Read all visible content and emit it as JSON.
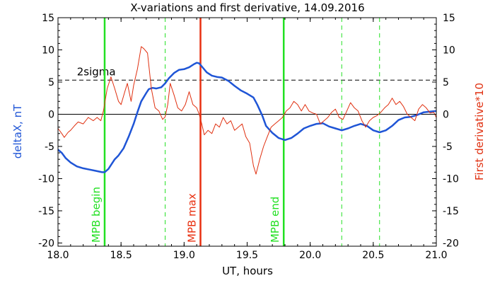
{
  "chart_data": {
    "type": "line",
    "title": "X-variations and first derivative, 14.09.2016",
    "xlabel": "UT, hours",
    "ylabel_left": "deltaX, nT",
    "ylabel_right": "First derivative*10",
    "xlim": [
      18.0,
      21.0
    ],
    "ylim": [
      -20.5,
      15
    ],
    "x_ticks": [
      "18.0",
      "18.5",
      "19.0",
      "19.5",
      "20.0",
      "20.5",
      "21.0"
    ],
    "y_ticks_left": [
      "15",
      "10",
      "5",
      "0",
      "-5",
      "-10",
      "-15",
      "-20"
    ],
    "y_ticks_right": [
      "15",
      "10",
      "5",
      "0",
      "-5",
      "-10",
      "-15",
      "-20"
    ],
    "colors": {
      "deltaX": "#1f55d6",
      "derivative": "#e03010",
      "mpb_boundary": "#22e022",
      "mpb_max": "#e83010",
      "dashed_green": "#22e022",
      "sigma_line": "#000000"
    },
    "sigma_level": 5.3,
    "sigma_label": "2sigma",
    "zero_line": 0,
    "vertical_markers": [
      {
        "x": 18.37,
        "label": "MPB begin",
        "color": "#22e022",
        "style": "solid"
      },
      {
        "x": 19.13,
        "label": "MPB max",
        "color": "#e83010",
        "style": "solid"
      },
      {
        "x": 19.79,
        "label": "MPB end",
        "color": "#22e022",
        "style": "solid"
      }
    ],
    "dashed_markers": [
      18.85,
      20.25,
      20.55
    ],
    "series": [
      {
        "name": "deltaX, nT",
        "axis": "left",
        "x": [
          18.0,
          18.03,
          18.06,
          18.1,
          18.15,
          18.2,
          18.25,
          18.3,
          18.35,
          18.37,
          18.4,
          18.45,
          18.48,
          18.52,
          18.56,
          18.6,
          18.63,
          18.66,
          18.7,
          18.72,
          18.75,
          18.78,
          18.82,
          18.85,
          18.88,
          18.92,
          18.96,
          19.0,
          19.04,
          19.08,
          19.1,
          19.12,
          19.15,
          19.18,
          19.22,
          19.26,
          19.3,
          19.35,
          19.4,
          19.45,
          19.5,
          19.55,
          19.58,
          19.62,
          19.65,
          19.7,
          19.75,
          19.8,
          19.85,
          19.9,
          19.95,
          20.0,
          20.05,
          20.1,
          20.15,
          20.2,
          20.25,
          20.3,
          20.35,
          20.4,
          20.45,
          20.5,
          20.55,
          20.6,
          20.65,
          20.7,
          20.75,
          20.8,
          20.85,
          20.9,
          20.95,
          21.0
        ],
        "y": [
          -5.5,
          -6.0,
          -6.8,
          -7.5,
          -8.1,
          -8.4,
          -8.6,
          -8.8,
          -9.0,
          -9.0,
          -8.5,
          -7.0,
          -6.4,
          -5.3,
          -3.5,
          -1.5,
          0.3,
          2.0,
          3.3,
          3.9,
          4.1,
          4.0,
          4.2,
          4.8,
          5.6,
          6.4,
          6.9,
          7.0,
          7.3,
          7.8,
          8.0,
          7.9,
          7.2,
          6.5,
          6.0,
          5.8,
          5.7,
          5.2,
          4.4,
          3.7,
          3.2,
          2.6,
          1.5,
          -0.2,
          -1.8,
          -2.9,
          -3.7,
          -4.0,
          -3.7,
          -3.0,
          -2.2,
          -1.8,
          -1.5,
          -1.4,
          -1.9,
          -2.2,
          -2.5,
          -2.2,
          -1.8,
          -1.5,
          -1.8,
          -2.5,
          -2.8,
          -2.5,
          -1.8,
          -0.9,
          -0.5,
          -0.4,
          -0.1,
          0.3,
          0.4,
          0.5
        ]
      },
      {
        "name": "First derivative*10",
        "axis": "right",
        "x": [
          18.0,
          18.03,
          18.05,
          18.08,
          18.1,
          18.13,
          18.16,
          18.2,
          18.24,
          18.28,
          18.31,
          18.34,
          18.36,
          18.39,
          18.42,
          18.45,
          18.48,
          18.5,
          18.53,
          18.55,
          18.58,
          18.6,
          18.63,
          18.66,
          18.68,
          18.71,
          18.74,
          18.77,
          18.8,
          18.83,
          18.85,
          18.87,
          18.89,
          18.92,
          18.95,
          18.98,
          19.01,
          19.04,
          19.07,
          19.1,
          19.12,
          19.14,
          19.16,
          19.19,
          19.22,
          19.25,
          19.28,
          19.31,
          19.34,
          19.37,
          19.4,
          19.43,
          19.46,
          19.49,
          19.52,
          19.55,
          19.57,
          19.6,
          19.63,
          19.66,
          19.69,
          19.72,
          19.75,
          19.78,
          19.81,
          19.84,
          19.87,
          19.9,
          19.93,
          19.96,
          19.99,
          20.02,
          20.05,
          20.08,
          20.11,
          20.14,
          20.17,
          20.2,
          20.23,
          20.26,
          20.29,
          20.32,
          20.35,
          20.38,
          20.41,
          20.44,
          20.47,
          20.5,
          20.53,
          20.56,
          20.59,
          20.62,
          20.65,
          20.68,
          20.71,
          20.74,
          20.77,
          20.8,
          20.83,
          20.86,
          20.89,
          20.92,
          20.95,
          20.98,
          21.0
        ],
        "y": [
          -2.2,
          -3.0,
          -3.6,
          -2.8,
          -2.5,
          -1.8,
          -1.2,
          -1.5,
          -0.5,
          -1.0,
          -0.5,
          -1.0,
          0.5,
          4.0,
          5.8,
          4.0,
          2.0,
          1.5,
          3.5,
          4.8,
          2.0,
          4.5,
          7.0,
          10.5,
          10.2,
          9.5,
          4.0,
          1.0,
          0.5,
          -0.8,
          -0.4,
          1.5,
          4.8,
          3.0,
          1.0,
          0.5,
          1.5,
          3.5,
          1.5,
          1.0,
          0.0,
          -1.5,
          -3.2,
          -2.5,
          -3.0,
          -1.5,
          -2.0,
          -0.5,
          -1.5,
          -1.0,
          -2.5,
          -2.0,
          -1.5,
          -3.5,
          -4.5,
          -8.0,
          -9.3,
          -7.0,
          -5.0,
          -3.5,
          -2.0,
          -1.5,
          -1.0,
          -0.5,
          0.5,
          1.0,
          2.0,
          1.5,
          0.5,
          1.5,
          0.5,
          0.2,
          0.0,
          -1.5,
          -1.0,
          -0.5,
          0.3,
          0.8,
          -0.5,
          -0.8,
          0.5,
          1.8,
          1.0,
          0.5,
          -1.0,
          -2.0,
          -1.0,
          -0.5,
          -0.2,
          0.3,
          1.0,
          1.5,
          2.5,
          1.5,
          2.0,
          1.2,
          0.0,
          -0.5,
          -1.0,
          0.8,
          1.5,
          1.0,
          0.2,
          0.3,
          -0.5
        ]
      }
    ]
  }
}
